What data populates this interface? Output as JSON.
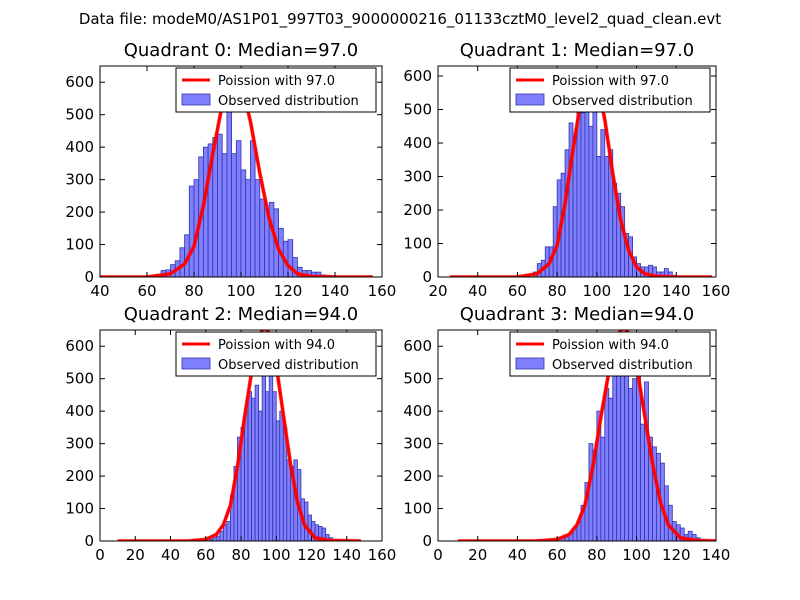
{
  "suptitle": "Data file: modeM0/AS1P01_997T03_9000000216_01133cztM0_level2_quad_clean.evt",
  "colors": {
    "poisson": "#ff0000",
    "observed_fill": "#8080ff",
    "observed_edge": "#3333aa",
    "axis": "#000000",
    "background": "#ffffff"
  },
  "chart_data": [
    {
      "type": "bar",
      "title": "Quadrant 0: Median=97.0",
      "xlim": [
        40,
        160
      ],
      "ylim": [
        0,
        650
      ],
      "xticks": [
        40,
        60,
        80,
        100,
        120,
        140,
        160
      ],
      "yticks": [
        0,
        100,
        200,
        300,
        400,
        500,
        600
      ],
      "legend": [
        "Poission with 97.0",
        "Observed distribution"
      ],
      "legend_location": "top-right",
      "bin_width": 2,
      "observed": {
        "bin_left": [
          64,
          66,
          68,
          70,
          72,
          74,
          76,
          78,
          80,
          82,
          84,
          86,
          88,
          90,
          92,
          94,
          96,
          98,
          100,
          102,
          104,
          106,
          108,
          110,
          112,
          114,
          116,
          118,
          120,
          122,
          124,
          126,
          128,
          130,
          132,
          134,
          136,
          138,
          140,
          142,
          144
        ],
        "counts": [
          8,
          20,
          22,
          38,
          50,
          90,
          130,
          280,
          300,
          370,
          400,
          410,
          430,
          440,
          380,
          520,
          380,
          420,
          330,
          300,
          420,
          300,
          240,
          210,
          230,
          210,
          150,
          110,
          115,
          60,
          30,
          20,
          20,
          15,
          15,
          6,
          5,
          4,
          3,
          2,
          1
        ]
      },
      "poisson": {
        "x": [
          40,
          60,
          70,
          76,
          80,
          84,
          88,
          92,
          96,
          98,
          100,
          104,
          108,
          112,
          116,
          120,
          124,
          130,
          140,
          156
        ],
        "y": [
          0,
          0,
          10,
          40,
          95,
          220,
          380,
          530,
          610,
          620,
          600,
          480,
          320,
          180,
          85,
          35,
          10,
          2,
          0,
          0
        ]
      }
    },
    {
      "type": "bar",
      "title": "Quadrant 1: Median=97.0",
      "xlim": [
        20,
        160
      ],
      "ylim": [
        0,
        630
      ],
      "xticks": [
        20,
        40,
        60,
        80,
        100,
        120,
        140,
        160
      ],
      "yticks": [
        0,
        100,
        200,
        300,
        400,
        500,
        600
      ],
      "legend": [
        "Poission with 97.0",
        "Observed distribution"
      ],
      "legend_location": "top-right",
      "bin_width": 2,
      "observed": {
        "bin_left": [
          60,
          64,
          68,
          70,
          72,
          74,
          76,
          78,
          80,
          82,
          84,
          86,
          88,
          90,
          92,
          94,
          96,
          98,
          100,
          102,
          104,
          106,
          108,
          110,
          112,
          114,
          116,
          118,
          120,
          122,
          124,
          126,
          128,
          130,
          132,
          134,
          136,
          138,
          140,
          142
        ],
        "counts": [
          5,
          5,
          15,
          40,
          50,
          90,
          90,
          210,
          290,
          310,
          380,
          460,
          420,
          520,
          490,
          540,
          450,
          540,
          360,
          440,
          360,
          380,
          280,
          250,
          210,
          130,
          120,
          60,
          40,
          30,
          30,
          35,
          30,
          15,
          15,
          25,
          15,
          5,
          3,
          2
        ]
      },
      "poisson": {
        "x": [
          26,
          60,
          70,
          76,
          80,
          84,
          88,
          92,
          96,
          98,
          100,
          104,
          108,
          112,
          116,
          120,
          124,
          130,
          140,
          158
        ],
        "y": [
          0,
          0,
          10,
          40,
          95,
          220,
          380,
          530,
          600,
          610,
          590,
          470,
          310,
          170,
          80,
          30,
          10,
          2,
          0,
          0
        ]
      }
    },
    {
      "type": "bar",
      "title": "Quadrant 2: Median=94.0",
      "xlim": [
        0,
        160
      ],
      "ylim": [
        0,
        650
      ],
      "xticks": [
        0,
        20,
        40,
        60,
        80,
        100,
        120,
        140,
        160
      ],
      "yticks": [
        0,
        100,
        200,
        300,
        400,
        500,
        600
      ],
      "legend": [
        "Poission with 94.0",
        "Observed distribution"
      ],
      "legend_location": "top-right",
      "bin_width": 2,
      "observed": {
        "bin_left": [
          58,
          62,
          64,
          66,
          68,
          70,
          72,
          74,
          76,
          78,
          80,
          82,
          84,
          86,
          88,
          90,
          92,
          94,
          96,
          98,
          100,
          102,
          104,
          106,
          108,
          110,
          112,
          114,
          116,
          118,
          120,
          122,
          124,
          126,
          128,
          130,
          132,
          134
        ],
        "counts": [
          5,
          5,
          10,
          15,
          30,
          50,
          60,
          140,
          230,
          320,
          350,
          400,
          460,
          440,
          480,
          400,
          520,
          460,
          600,
          460,
          370,
          400,
          350,
          250,
          230,
          250,
          220,
          130,
          120,
          80,
          60,
          50,
          45,
          40,
          20,
          10,
          5,
          3
        ]
      },
      "poisson": {
        "x": [
          10,
          50,
          60,
          66,
          70,
          74,
          78,
          82,
          86,
          90,
          92,
          94,
          96,
          100,
          104,
          108,
          112,
          116,
          122,
          130,
          148
        ],
        "y": [
          0,
          0,
          5,
          20,
          50,
          110,
          230,
          380,
          520,
          620,
          650,
          655,
          640,
          540,
          390,
          240,
          120,
          50,
          10,
          2,
          0
        ]
      }
    },
    {
      "type": "bar",
      "title": "Quadrant 3: Median=94.0",
      "xlim": [
        0,
        140
      ],
      "ylim": [
        0,
        650
      ],
      "xticks": [
        0,
        20,
        40,
        60,
        80,
        100,
        120,
        140
      ],
      "yticks": [
        0,
        100,
        200,
        300,
        400,
        500,
        600
      ],
      "legend": [
        "Poission with 94.0",
        "Observed distribution"
      ],
      "legend_location": "top-right",
      "bin_width": 2,
      "observed": {
        "bin_left": [
          50,
          54,
          58,
          62,
          64,
          66,
          68,
          70,
          72,
          74,
          76,
          78,
          80,
          82,
          84,
          86,
          88,
          90,
          92,
          94,
          96,
          98,
          100,
          102,
          104,
          106,
          108,
          110,
          112,
          114,
          116,
          118,
          120,
          122,
          124,
          126,
          128,
          130,
          132
        ],
        "counts": [
          5,
          5,
          5,
          10,
          15,
          25,
          40,
          60,
          110,
          180,
          300,
          280,
          400,
          320,
          470,
          440,
          540,
          560,
          510,
          580,
          470,
          500,
          600,
          360,
          490,
          320,
          290,
          270,
          240,
          170,
          110,
          60,
          50,
          40,
          20,
          30,
          20,
          10,
          5
        ]
      },
      "poisson": {
        "x": [
          10,
          50,
          60,
          66,
          70,
          74,
          78,
          82,
          86,
          90,
          92,
          94,
          96,
          100,
          104,
          108,
          112,
          116,
          122,
          130,
          140
        ],
        "y": [
          0,
          0,
          5,
          20,
          50,
          110,
          230,
          380,
          520,
          620,
          650,
          655,
          640,
          540,
          390,
          240,
          120,
          50,
          10,
          2,
          0
        ]
      }
    }
  ]
}
